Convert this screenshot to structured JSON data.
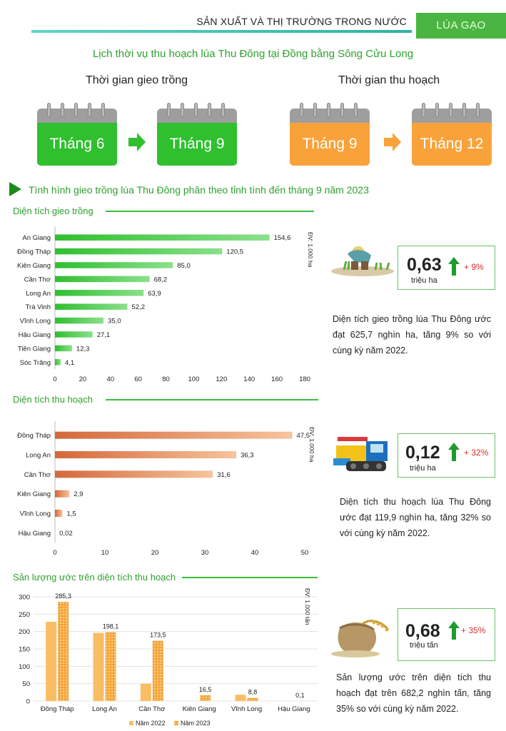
{
  "header": {
    "title": "SẢN XUẤT VÀ THỊ TRƯỜNG TRONG NƯỚC",
    "tag": "LÚA GẠO"
  },
  "main_title": "Lịch thời vụ thu hoạch lúa Thu Đông tại Đồng bằng Sông Cửu Long",
  "schedule": {
    "planting_label": "Thời gian gieo trồng",
    "harvest_label": "Thời gian thu hoạch",
    "planting_start": "Tháng 6",
    "planting_end": "Tháng 9",
    "harvest_start": "Tháng 9",
    "harvest_end": "Tháng 12"
  },
  "section_heading": "Tình hình gieo trồng lúa Thu Đông phân theo tỉnh tính đến tháng 9 năm 2023",
  "chart_data": [
    {
      "type": "bar",
      "orientation": "horizontal",
      "title": "Diện tích gieo trồng",
      "unit_label": "ĐV: 1.000 ha",
      "categories": [
        "Sóc Trăng",
        "Tiền Giang",
        "Hậu Giang",
        "Vĩnh Long",
        "Trà Vinh",
        "Long An",
        "Cần Thơ",
        "Kiên Giang",
        "Đồng Tháp",
        "An Giang"
      ],
      "values": [
        4.1,
        12.3,
        27.1,
        35.0,
        52.2,
        63.9,
        68.2,
        85.0,
        120.5,
        154.6
      ],
      "value_labels": [
        "4,1",
        "12,3",
        "27,1",
        "35,0",
        "52,2",
        "63,9",
        "68,2",
        "85,0",
        "120,5",
        "154,6"
      ],
      "xlim": [
        0,
        180
      ],
      "ticks": [
        "0",
        "20",
        "40",
        "60",
        "80",
        "100",
        "120",
        "140",
        "160",
        "180"
      ],
      "color": "#3cc23c"
    },
    {
      "type": "bar",
      "orientation": "horizontal",
      "title": "Diện tích thu hoạch",
      "unit_label": "ĐV: 1.000 ha",
      "categories": [
        "Hậu Giang",
        "Vĩnh Long",
        "Kiên Giang",
        "Cần Thơ",
        "Long An",
        "Đồng Tháp"
      ],
      "values": [
        0.02,
        1.5,
        2.9,
        31.6,
        36.3,
        47.5
      ],
      "value_labels": [
        "0,02",
        "1,5",
        "2,9",
        "31,6",
        "36,3",
        "47,5"
      ],
      "xlim": [
        0,
        50
      ],
      "ticks": [
        "0",
        "10",
        "20",
        "30",
        "40",
        "50"
      ],
      "color": "#d9703f"
    },
    {
      "type": "bar",
      "orientation": "vertical",
      "title": "Sản lượng ước trên diện tích thu hoạch",
      "unit_label": "ĐV: 1.000 tấn",
      "categories": [
        "Đồng Tháp",
        "Long An",
        "Cần Thơ",
        "Kiên Giang",
        "Vĩnh Long",
        "Hậu Giang"
      ],
      "series": [
        {
          "name": "Năm 2022",
          "values": [
            228,
            196,
            50,
            0,
            18,
            0
          ],
          "color": "#fbbd64"
        },
        {
          "name": "Năm 2023",
          "values": [
            285.3,
            198.1,
            173.5,
            16.5,
            8.8,
            0.1
          ],
          "labels": [
            "285,3",
            "198,1",
            "173,5",
            "16,5",
            "8,8",
            "0,1"
          ],
          "color": "#f4a63a"
        }
      ],
      "ylim": [
        0,
        300
      ],
      "ticks": [
        "0",
        "50",
        "100",
        "150",
        "200",
        "250",
        "300"
      ]
    }
  ],
  "stats": [
    {
      "value": "0,63",
      "unit": "triệu ha",
      "pct": "+ 9%",
      "color": "#e21f1f",
      "text": "Diện tích gieo trồng lúa Thu Đông ước đạt 625,7 nghìn ha, tăng 9% so với cùng kỳ năm 2022."
    },
    {
      "value": "0,12",
      "unit": "triệu ha",
      "pct": "+ 32%",
      "color": "#2aa8df",
      "text": "Diện tích thu hoạch lúa Thu Đông ước đạt 119,9 nghìn ha, tăng 32% so với cùng kỳ năm 2022."
    },
    {
      "value": "0,68",
      "unit": "triệu tấn",
      "pct": "+ 35%",
      "color": "#f3bd1f",
      "text": "Sản lượng ước trên diện tích thu hoạch đạt trên 682,2 nghìn tấn, tăng 35% so với cùng kỳ năm 2022."
    }
  ]
}
